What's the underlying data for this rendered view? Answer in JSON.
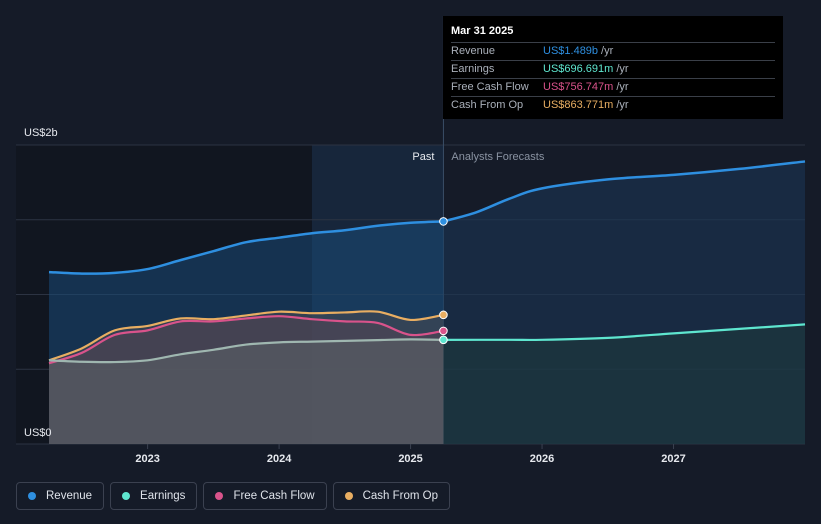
{
  "tooltip": {
    "date": "Mar 31 2025",
    "rows": [
      {
        "label": "Revenue",
        "value": "US$1.489b",
        "unit": "/yr",
        "color": "#2e8fe0"
      },
      {
        "label": "Earnings",
        "value": "US$696.691m",
        "unit": "/yr",
        "color": "#5ee6cf"
      },
      {
        "label": "Free Cash Flow",
        "value": "US$756.747m",
        "unit": "/yr",
        "color": "#d9538b"
      },
      {
        "label": "Cash From Op",
        "value": "US$863.771m",
        "unit": "/yr",
        "color": "#e8ae62"
      }
    ]
  },
  "legend": [
    {
      "label": "Revenue",
      "color": "#2e8fe0"
    },
    {
      "label": "Earnings",
      "color": "#5ee6cf"
    },
    {
      "label": "Free Cash Flow",
      "color": "#d9538b"
    },
    {
      "label": "Cash From Op",
      "color": "#e8ae62"
    }
  ],
  "chart_data": {
    "type": "area",
    "y_top_label": "US$2b",
    "y_bottom_label": "US$0",
    "ylim": [
      0,
      2.0
    ],
    "xlim": [
      2022.25,
      2028.0
    ],
    "x_tick_labels": [
      "2023",
      "2024",
      "2025",
      "2026",
      "2027"
    ],
    "x_ticks": [
      2023,
      2024,
      2025,
      2026,
      2027
    ],
    "past_label": "Past",
    "forecast_label": "Analysts Forecasts",
    "divider_x": 2025.25,
    "highlight_start_x": 2024.25,
    "series": [
      {
        "name": "Revenue",
        "color": "#2e8fe0",
        "points": [
          [
            2022.25,
            1.15
          ],
          [
            2022.5,
            1.14
          ],
          [
            2022.75,
            1.145
          ],
          [
            2023.0,
            1.17
          ],
          [
            2023.25,
            1.23
          ],
          [
            2023.5,
            1.29
          ],
          [
            2023.75,
            1.35
          ],
          [
            2024.0,
            1.38
          ],
          [
            2024.25,
            1.41
          ],
          [
            2024.5,
            1.43
          ],
          [
            2024.75,
            1.46
          ],
          [
            2025.0,
            1.48
          ],
          [
            2025.25,
            1.489
          ]
        ],
        "forecast": [
          [
            2025.25,
            1.489
          ],
          [
            2025.5,
            1.55
          ],
          [
            2025.75,
            1.64
          ],
          [
            2026.0,
            1.71
          ],
          [
            2026.5,
            1.77
          ],
          [
            2027.0,
            1.8
          ],
          [
            2027.5,
            1.84
          ],
          [
            2028.0,
            1.89
          ]
        ]
      },
      {
        "name": "Earnings",
        "color": "#5ee6cf",
        "points": [
          [
            2022.25,
            0.56
          ],
          [
            2022.5,
            0.55
          ],
          [
            2022.75,
            0.548
          ],
          [
            2023.0,
            0.56
          ],
          [
            2023.25,
            0.6
          ],
          [
            2023.5,
            0.63
          ],
          [
            2023.75,
            0.665
          ],
          [
            2024.0,
            0.68
          ],
          [
            2024.25,
            0.685
          ],
          [
            2024.5,
            0.69
          ],
          [
            2024.75,
            0.695
          ],
          [
            2025.0,
            0.7
          ],
          [
            2025.25,
            0.6967
          ]
        ],
        "forecast": [
          [
            2025.25,
            0.6967
          ],
          [
            2025.75,
            0.697
          ],
          [
            2026.0,
            0.697
          ],
          [
            2026.5,
            0.71
          ],
          [
            2027.0,
            0.74
          ],
          [
            2027.5,
            0.77
          ],
          [
            2028.0,
            0.8
          ]
        ]
      },
      {
        "name": "Free Cash Flow",
        "color": "#d9538b",
        "points": [
          [
            2022.25,
            0.54
          ],
          [
            2022.5,
            0.61
          ],
          [
            2022.75,
            0.73
          ],
          [
            2023.0,
            0.76
          ],
          [
            2023.25,
            0.82
          ],
          [
            2023.5,
            0.82
          ],
          [
            2023.75,
            0.84
          ],
          [
            2024.0,
            0.855
          ],
          [
            2024.25,
            0.835
          ],
          [
            2024.5,
            0.82
          ],
          [
            2024.75,
            0.81
          ],
          [
            2025.0,
            0.73
          ],
          [
            2025.25,
            0.7567
          ]
        ]
      },
      {
        "name": "Cash From Op",
        "color": "#e8ae62",
        "points": [
          [
            2022.25,
            0.56
          ],
          [
            2022.5,
            0.64
          ],
          [
            2022.75,
            0.76
          ],
          [
            2023.0,
            0.79
          ],
          [
            2023.25,
            0.84
          ],
          [
            2023.5,
            0.835
          ],
          [
            2023.75,
            0.86
          ],
          [
            2024.0,
            0.885
          ],
          [
            2024.25,
            0.875
          ],
          [
            2024.5,
            0.88
          ],
          [
            2024.75,
            0.885
          ],
          [
            2025.0,
            0.83
          ],
          [
            2025.25,
            0.8638
          ]
        ]
      }
    ]
  }
}
